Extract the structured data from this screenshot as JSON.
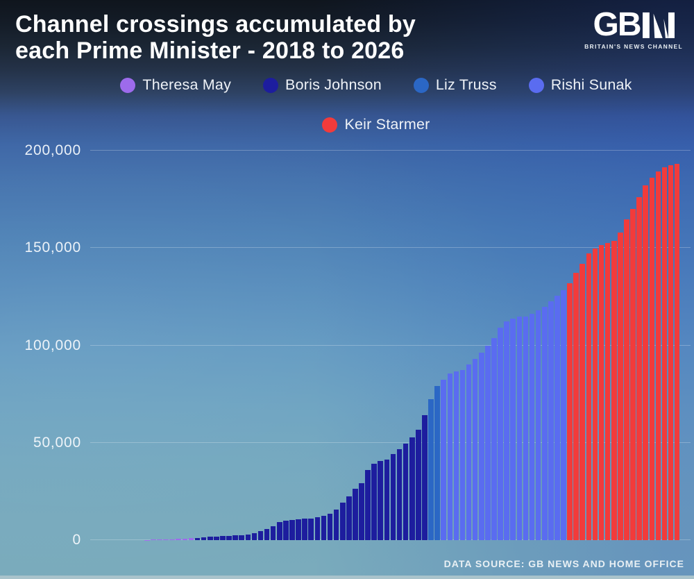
{
  "header": {
    "title_line1": "Channel crossings accumulated by",
    "title_line2": "each Prime Minister - 2018 to 2026",
    "logo_text": "GB",
    "logo_tagline": "BRITAIN'S NEWS CHANNEL"
  },
  "footer": {
    "source": "DATA SOURCE: GB NEWS AND HOME OFFICE"
  },
  "legend_rows": [
    [
      "Theresa May",
      "Boris Johnson",
      "Liz Truss",
      "Rishi Sunak"
    ],
    [
      "Keir Starmer"
    ]
  ],
  "chart_data": {
    "type": "bar",
    "title": "Channel crossings accumulated by each Prime Minister - 2018 to 2026",
    "xlabel": "",
    "ylabel": "",
    "ylim": [
      0,
      200000
    ],
    "grid": true,
    "x_axis_labels_visible": false,
    "bar_unit": "cumulative crossings per month",
    "y_ticks": [
      {
        "value": 0,
        "label": "0"
      },
      {
        "value": 50000,
        "label": "50,000"
      },
      {
        "value": 100000,
        "label": "100,000"
      },
      {
        "value": 150000,
        "label": "150,000"
      },
      {
        "value": 200000,
        "label": "200,000"
      }
    ],
    "segments": [
      {
        "name": "Theresa May",
        "color": "#9d6bec",
        "values": [
          120,
          200,
          280,
          360,
          450,
          560,
          700,
          950
        ]
      },
      {
        "name": "Boris Johnson",
        "color": "#1d1d9e",
        "values": [
          1200,
          1450,
          1700,
          1950,
          2100,
          2250,
          2400,
          2600,
          3000,
          3700,
          4500,
          5600,
          7300,
          9200,
          10100,
          10500,
          10700,
          10900,
          11100,
          11700,
          12500,
          13600,
          15700,
          19200,
          22600,
          26300,
          29300,
          36000,
          39200,
          40500,
          41300,
          44200,
          46800,
          49600,
          52900,
          56800,
          64200
        ]
      },
      {
        "name": "Liz Truss",
        "color": "#2b67c5",
        "values": [
          72200,
          79200
        ]
      },
      {
        "name": "Rishi Sunak",
        "color": "#5a6cf0",
        "values": [
          82200,
          85500,
          86600,
          87200,
          90100,
          93100,
          96200,
          99900,
          103800,
          109000,
          112400,
          113900,
          114700,
          114900,
          116200,
          118000,
          119700,
          122500,
          125500,
          128200
        ]
      },
      {
        "name": "Keir Starmer",
        "color": "#f23b3b",
        "values": [
          131900,
          137100,
          142000,
          147300,
          149700,
          151500,
          152600,
          153500,
          158100,
          164700,
          169900,
          176100,
          182100,
          186100,
          189300,
          191300,
          192500,
          193200
        ]
      }
    ]
  }
}
